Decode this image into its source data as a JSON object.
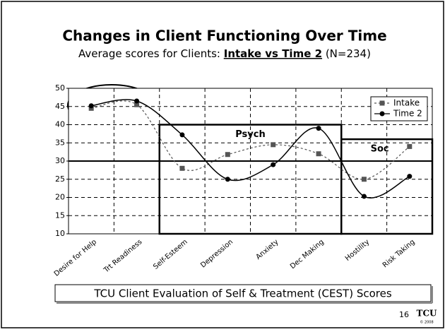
{
  "chart_data": {
    "type": "line",
    "title": "Changes in Client Functioning Over Time",
    "subtitle": {
      "before": "Average scores for Clients: ",
      "emphasis": "Intake vs Time 2",
      "after": " (N=234)"
    },
    "categories": [
      "Desire for Help",
      "Trt Readiness",
      "Self-Esteem",
      "Depression",
      "Anxiety",
      "Dec Making",
      "Hostility",
      "Risk Taking"
    ],
    "series": [
      {
        "name": "Intake",
        "color": "#555555",
        "values": [
          44.5,
          45.5,
          28,
          31.8,
          34.5,
          32,
          25,
          34
        ]
      },
      {
        "name": "Time 2",
        "color": "#000000",
        "values": [
          45.2,
          46.5,
          37.2,
          25,
          29,
          39,
          20.3,
          25.8
        ]
      }
    ],
    "ylim": [
      10,
      50
    ],
    "yticks": [
      10,
      15,
      20,
      25,
      30,
      35,
      40,
      45,
      50
    ],
    "grid": true,
    "legend": "top-right",
    "reference_line": 30,
    "boxes": [
      {
        "label": "Psych",
        "from": "Self-Esteem",
        "to": "Dec Making",
        "top": 40
      },
      {
        "label": "Soc",
        "from": "Hostility",
        "to": "Risk Taking",
        "top": 36
      }
    ],
    "footer": "TCU Client Evaluation of Self & Treatment (CEST) Scores",
    "page_number": "16",
    "logo": "TCU",
    "copyright": "© 2008"
  }
}
